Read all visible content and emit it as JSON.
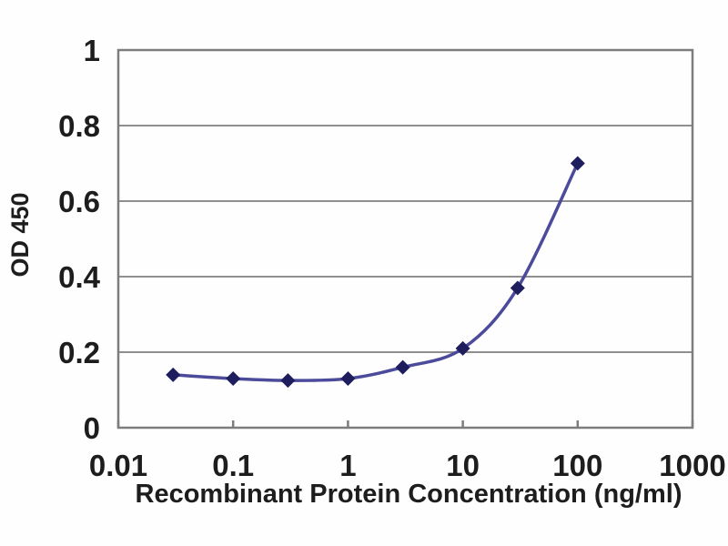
{
  "chart_data": {
    "type": "line",
    "title": "",
    "xlabel": "Recombinant Protein Concentration (ng/ml)",
    "ylabel": "OD 450",
    "x_scale": "log",
    "y_scale": "linear",
    "xlim": [
      0.01,
      1000
    ],
    "ylim": [
      0,
      1
    ],
    "x_tick_values": [
      0.01,
      0.1,
      1,
      10,
      100,
      1000
    ],
    "x_tick_labels": [
      "0.01",
      "0.1",
      "1",
      "10",
      "100",
      "1000"
    ],
    "y_tick_values": [
      0,
      0.2,
      0.4,
      0.6,
      0.8,
      1
    ],
    "y_tick_labels": [
      "0",
      "0.2",
      "0.4",
      "0.6",
      "0.8",
      "1"
    ],
    "grid": "horizontal",
    "legend": "none",
    "series": [
      {
        "name": "OD 450",
        "marker": "diamond",
        "smooth": true,
        "x": [
          0.03,
          0.1,
          0.3,
          1,
          3,
          10,
          30,
          100
        ],
        "y": [
          0.14,
          0.13,
          0.125,
          0.13,
          0.16,
          0.21,
          0.37,
          0.7
        ]
      }
    ]
  },
  "colors": {
    "line": "#4c4b9b",
    "marker": "#1e1d5e",
    "grid": "#8f8f8f",
    "axis": "#7d7d7d",
    "text": "#1d1d1d",
    "background": "#fefefe"
  }
}
